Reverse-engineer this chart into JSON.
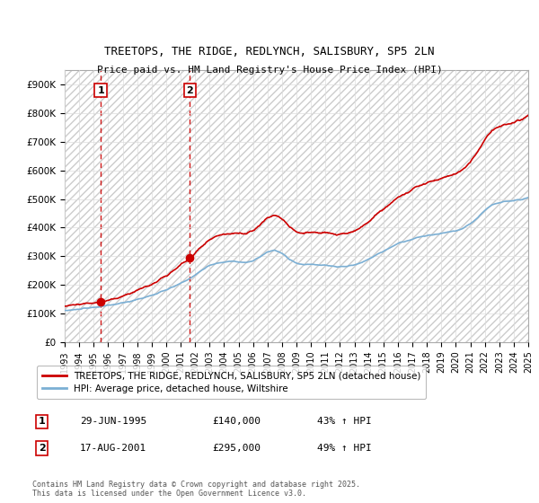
{
  "title": "TREETOPS, THE RIDGE, REDLYNCH, SALISBURY, SP5 2LN",
  "subtitle": "Price paid vs. HM Land Registry's House Price Index (HPI)",
  "ylabel_ticks": [
    "£0",
    "£100K",
    "£200K",
    "£300K",
    "£400K",
    "£500K",
    "£600K",
    "£700K",
    "£800K",
    "£900K"
  ],
  "ytick_values": [
    0,
    100000,
    200000,
    300000,
    400000,
    500000,
    600000,
    700000,
    800000,
    900000
  ],
  "xlim": [
    1993,
    2025
  ],
  "ylim": [
    0,
    950000
  ],
  "transaction1": {
    "date_num": 1995.49,
    "price": 140000,
    "label": "1",
    "pct": "43% ↑ HPI",
    "date_str": "29-JUN-1995"
  },
  "transaction2": {
    "date_num": 2001.63,
    "price": 295000,
    "label": "2",
    "pct": "49% ↑ HPI",
    "date_str": "17-AUG-2001"
  },
  "house_line_color": "#cc0000",
  "hpi_line_color": "#7bafd4",
  "vline_color": "#cc0000",
  "legend_line1": "TREETOPS, THE RIDGE, REDLYNCH, SALISBURY, SP5 2LN (detached house)",
  "legend_line2": "HPI: Average price, detached house, Wiltshire",
  "footnote": "Contains HM Land Registry data © Crown copyright and database right 2025.\nThis data is licensed under the Open Government Licence v3.0.",
  "xticks": [
    1993,
    1994,
    1995,
    1996,
    1997,
    1998,
    1999,
    2000,
    2001,
    2002,
    2003,
    2004,
    2005,
    2006,
    2007,
    2008,
    2009,
    2010,
    2011,
    2012,
    2013,
    2014,
    2015,
    2016,
    2017,
    2018,
    2019,
    2020,
    2021,
    2022,
    2023,
    2024,
    2025
  ]
}
